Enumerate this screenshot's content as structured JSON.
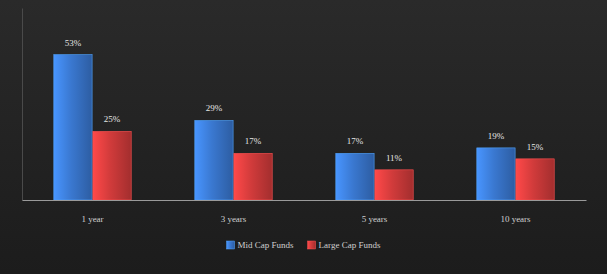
{
  "chart_data": {
    "type": "bar",
    "categories": [
      "1 year",
      "3 years",
      "5 years",
      "10 years"
    ],
    "series": [
      {
        "name": "Mid Cap Funds",
        "color": "#3a78d0",
        "values": [
          53,
          29,
          17,
          19
        ],
        "value_labels": [
          "53%",
          "29%",
          "17%",
          "19%"
        ]
      },
      {
        "name": "Large Cap Funds",
        "color": "#d13b3b",
        "values": [
          25,
          17,
          11,
          15
        ],
        "value_labels": [
          "25%",
          "17%",
          "11%",
          "15%"
        ]
      }
    ],
    "ylim": [
      0,
      70
    ],
    "data_labels": true,
    "tick_labels": "x",
    "legend": "bottom"
  }
}
